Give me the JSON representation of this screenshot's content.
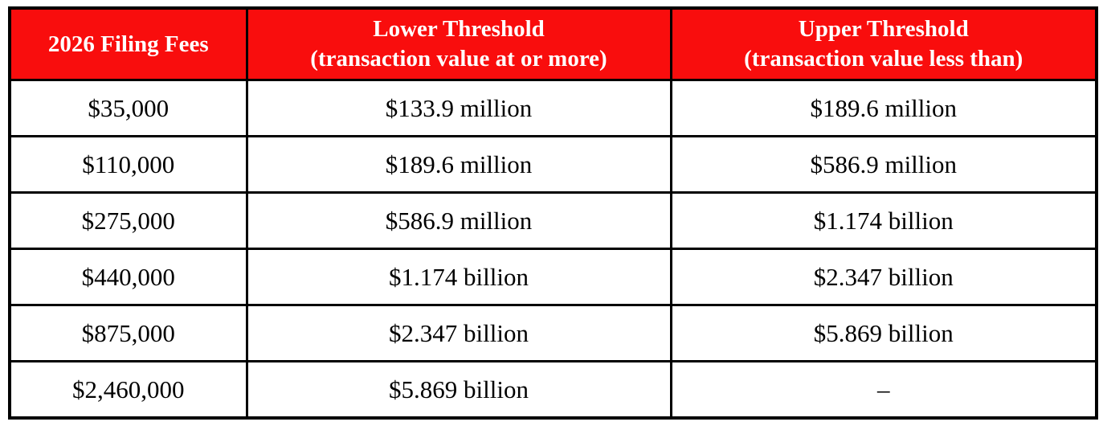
{
  "colors": {
    "header_bg": "#f90d0d",
    "header_text": "#ffffff",
    "body_text": "#000000",
    "border": "#000000",
    "page_bg": "#ffffff"
  },
  "chart_data": {
    "type": "table",
    "title": "2026 Filing Fees",
    "header": [
      {
        "line1": "2026 Filing Fees",
        "line2": ""
      },
      {
        "line1": "Lower Threshold",
        "line2": "(transaction value at or more)"
      },
      {
        "line1": "Upper Threshold",
        "line2": "(transaction value less than)"
      }
    ],
    "columns": [
      "2026 Filing Fees",
      "Lower Threshold (transaction value at or more)",
      "Upper Threshold (transaction value less than)"
    ],
    "rows": [
      [
        "$35,000",
        "$133.9 million",
        "$189.6 million"
      ],
      [
        "$110,000",
        "$189.6 million",
        "$586.9 million"
      ],
      [
        "$275,000",
        "$586.9 million",
        "$1.174 billion"
      ],
      [
        "$440,000",
        "$1.174 billion",
        "$2.347 billion"
      ],
      [
        "$875,000",
        "$2.347 billion",
        "$5.869 billion"
      ],
      [
        "$2,460,000",
        "$5.869 billion",
        "–"
      ]
    ]
  }
}
